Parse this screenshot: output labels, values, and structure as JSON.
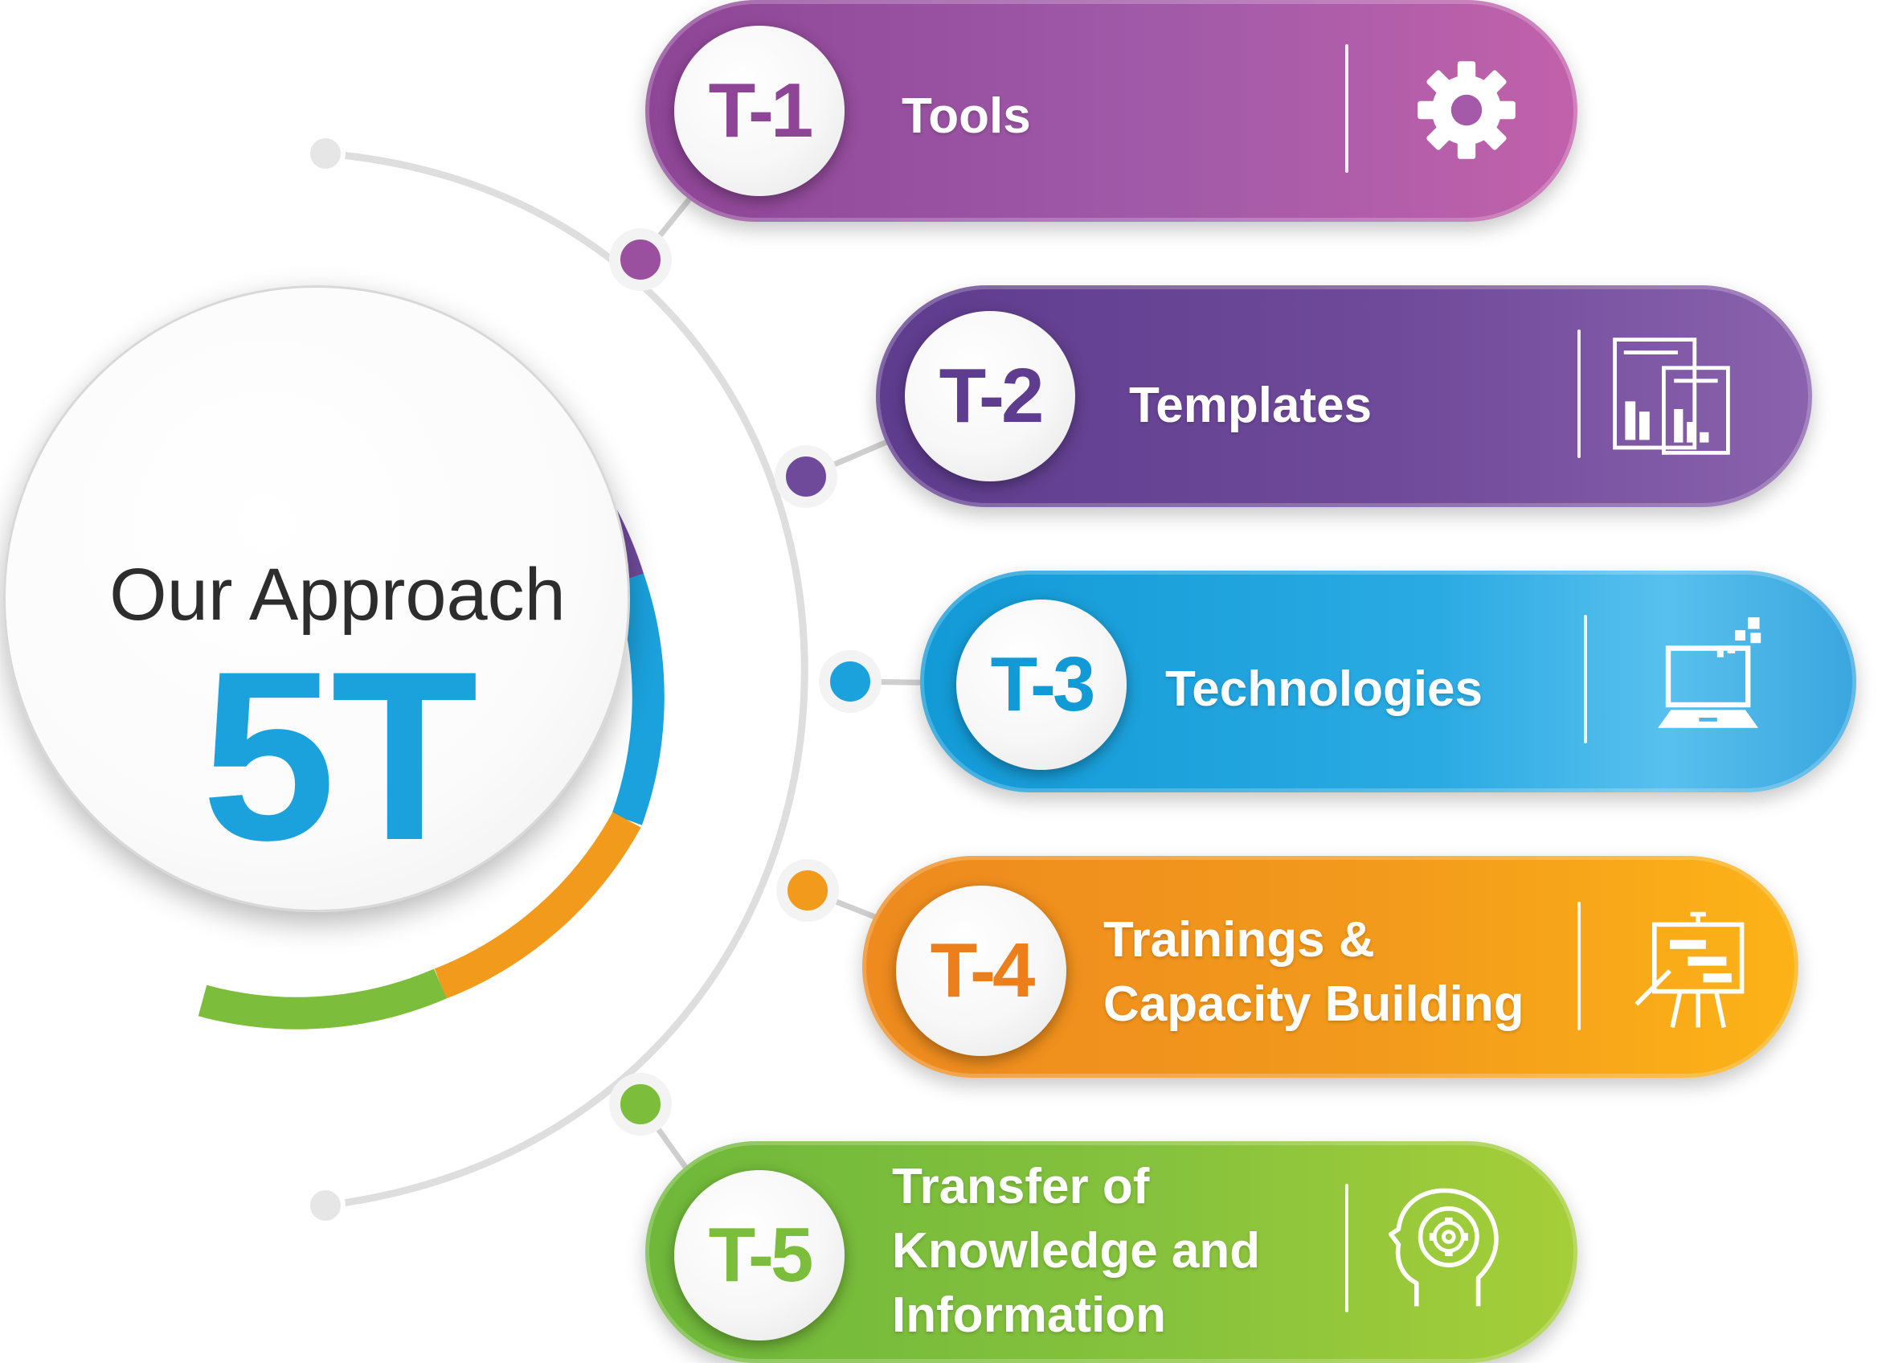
{
  "center": {
    "title": "Our Approach",
    "big": "5T"
  },
  "colors": {
    "purple": "#9b4f9f",
    "violet": "#6f4a9a",
    "blue": "#1ba1dc",
    "orange": "#f29a1c",
    "green": "#7cbd3b",
    "line": "#dedede"
  },
  "items": [
    {
      "code": "T-1",
      "label": "Tools",
      "icon": "gear-icon",
      "color": "#9b4f9f"
    },
    {
      "code": "T-2",
      "label": "Templates",
      "icon": "report-charts-icon",
      "color": "#6f4a9a"
    },
    {
      "code": "T-3",
      "label": "Technologies",
      "icon": "laptop-icon",
      "color": "#1ba1dc"
    },
    {
      "code": "T-4",
      "label": "Trainings &\nCapacity Building",
      "icon": "presentation-board-icon",
      "color": "#f29a1c"
    },
    {
      "code": "T-5",
      "label": "Transfer of\nKnowledge and\nInformation",
      "icon": "head-gear-icon",
      "color": "#7cbd3b"
    }
  ]
}
